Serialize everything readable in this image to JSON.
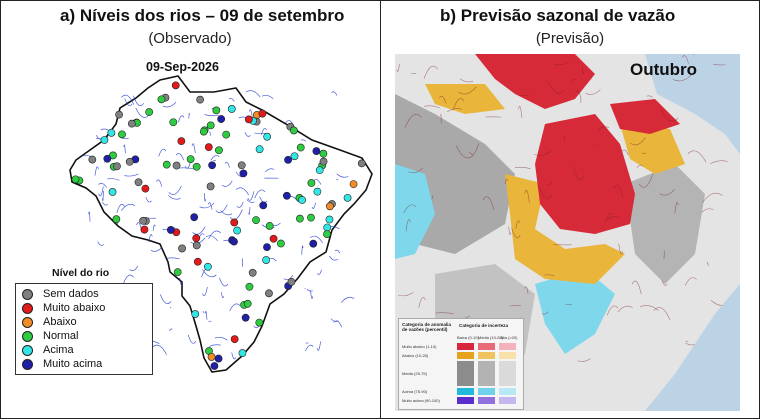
{
  "left_panel": {
    "title": "a)   Níveis dos rios – 09 de setembro",
    "subtitle": "(Observado)",
    "map_date": "09-Sep-2026",
    "legend": {
      "title": "Nível do rio",
      "items": [
        {
          "label": "Sem dados",
          "color": "#808080"
        },
        {
          "label": "Muito abaixo",
          "color": "#e31a1c"
        },
        {
          "label": "Abaixo",
          "color": "#f28c28"
        },
        {
          "label": "Normal",
          "color": "#2ecc40"
        },
        {
          "label": "Acima",
          "color": "#33e6e6"
        },
        {
          "label": "Muito acima",
          "color": "#1f1fa8"
        }
      ]
    }
  },
  "right_panel": {
    "title": "b)   Previsão sazonal de vazão",
    "subtitle": "(Previsão)",
    "month_label": "Outubro",
    "inset_legend": {
      "col_header_left": "Categoria de anomalia de vazões (percentil)",
      "col_header_right": "Categoria de incerteza",
      "uncertainty_cols": [
        "Baixa (0-10)",
        "Média (10-20)",
        "Alta (>20)"
      ],
      "rows": [
        {
          "label": "Muito abaixo (1-10)",
          "colors": [
            "#d7263d",
            "#e86a78",
            "#f4b3ba"
          ]
        },
        {
          "label": "Abaixo (10-25)",
          "colors": [
            "#e6a21a",
            "#f0c35e",
            "#f7e0a9"
          ]
        },
        {
          "label": "Média (25-75)",
          "colors": [
            "#8c8c8c",
            "#b3b3b3",
            "#dadada"
          ]
        },
        {
          "label": "Acima (75-90)",
          "colors": [
            "#22b8d9",
            "#6fd2e8",
            "#b6e9f3"
          ]
        },
        {
          "label": "Muito acima (90-100)",
          "colors": [
            "#5a2ecc",
            "#8f70de",
            "#c5b6ee"
          ]
        }
      ]
    }
  }
}
